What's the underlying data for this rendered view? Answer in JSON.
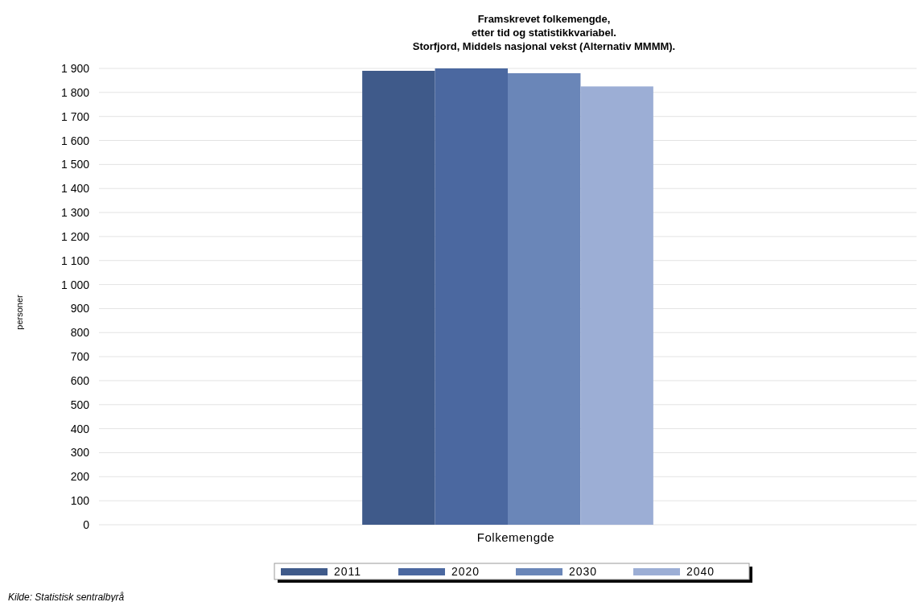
{
  "chart_data": {
    "type": "bar",
    "title": "Framskrevet folkemengde,\netter tid og statistikkvariabel.\nStorfjord, Middels nasjonal vekst (Alternativ MMMM).",
    "ylabel": "personer",
    "categories": [
      "Folkemengde"
    ],
    "series": [
      {
        "name": "2011",
        "color": "#3f5a8a",
        "values": [
          1890
        ]
      },
      {
        "name": "2020",
        "color": "#4b68a0",
        "values": [
          1900
        ]
      },
      {
        "name": "2030",
        "color": "#6a86b8",
        "values": [
          1880
        ]
      },
      {
        "name": "2040",
        "color": "#9caed5",
        "values": [
          1825
        ]
      }
    ],
    "ylim": [
      0,
      1900
    ],
    "yticks": [
      0,
      100,
      200,
      300,
      400,
      500,
      600,
      700,
      800,
      900,
      {
        "value": 1000,
        "label": "1 000"
      },
      {
        "value": 1100,
        "label": "1 100"
      },
      {
        "value": 1200,
        "label": "1 200"
      },
      {
        "value": 1300,
        "label": "1 300"
      },
      {
        "value": 1400,
        "label": "1 400"
      },
      {
        "value": 1500,
        "label": "1 500"
      },
      {
        "value": 1600,
        "label": "1 600"
      },
      {
        "value": 1700,
        "label": "1 700"
      },
      {
        "value": 1800,
        "label": "1 800"
      },
      {
        "value": 1900,
        "label": "1 900"
      }
    ],
    "grid": "y",
    "legend": "bottom",
    "annotations": [
      "Kilde: Statistisk sentralbyrå"
    ]
  }
}
